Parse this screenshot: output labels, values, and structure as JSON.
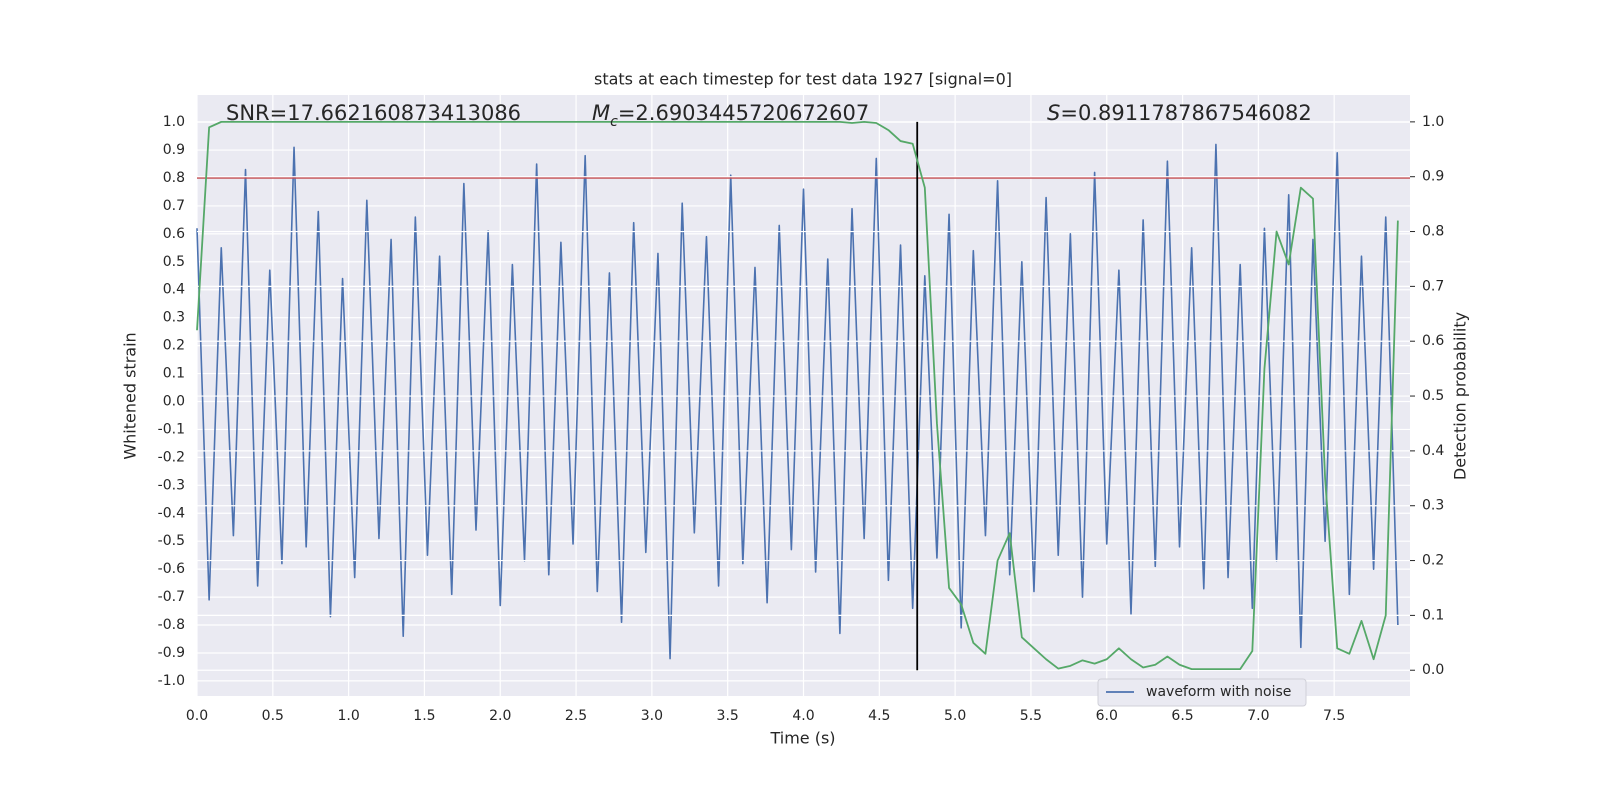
{
  "chart_data": {
    "type": "line",
    "title": "stats at each timestep for test data 1927 [signal=0]",
    "x_label": "Time (s)",
    "y_label": "Whitened strain",
    "y2_label": "Detection probability",
    "annotations": [
      {
        "text": "SNR=17.662160873413086"
      },
      {
        "symbol": "M",
        "subscript": "c",
        "text": "=2.6903445720672607"
      },
      {
        "symbol": "S",
        "text": "=0.8911787867546082"
      }
    ],
    "xlim": [
      0,
      8
    ],
    "ylim": [
      -1.054,
      1.097
    ],
    "y2lim": [
      -0.047,
      1.049
    ],
    "xticks": [
      {
        "value": 0,
        "label": "0.0"
      },
      0.5,
      {
        "value": 1,
        "label": "1.0"
      },
      1.5,
      {
        "value": 2,
        "label": "2.0"
      },
      2.5,
      {
        "value": 3,
        "label": "3.0"
      },
      3.5,
      {
        "value": 4,
        "label": "4.0"
      },
      4.5,
      {
        "value": 5,
        "label": "5.0"
      },
      5.5,
      {
        "value": 6,
        "label": "6.0"
      },
      6.5,
      {
        "value": 7,
        "label": "7.0"
      },
      7.5
    ],
    "yticks": [
      {
        "value": -1,
        "label": "-1.0"
      },
      -0.9,
      -0.8,
      -0.7,
      -0.6,
      -0.5,
      -0.4,
      -0.3,
      -0.2,
      -0.1,
      {
        "value": 0,
        "label": "0.0"
      },
      0.1,
      0.2,
      0.3,
      0.4,
      0.5,
      0.6,
      0.7,
      0.8,
      0.9,
      {
        "value": 1,
        "label": "1.0"
      }
    ],
    "y2ticks": [
      {
        "value": 0,
        "label": "0.0"
      },
      0.1,
      0.2,
      0.3,
      0.4,
      0.5,
      0.6,
      0.7,
      0.8,
      0.9,
      {
        "value": 1,
        "label": "1.0"
      }
    ],
    "grid": true,
    "hline": {
      "y": 0.8,
      "color": "#c44e52"
    },
    "vline": {
      "x": 4.75,
      "ymin": 0,
      "ymax": 1,
      "axis": "y2",
      "color": "#000000"
    },
    "x": [
      0,
      0.08,
      0.16,
      0.24,
      0.32,
      0.4,
      0.48,
      0.56,
      0.64,
      0.72,
      0.8,
      0.88,
      0.96,
      1.04,
      1.12,
      1.2,
      1.28,
      1.36,
      1.44,
      1.52,
      1.6,
      1.68,
      1.76,
      1.84,
      1.92,
      2,
      2.08,
      2.16,
      2.24,
      2.32,
      2.4,
      2.48,
      2.56,
      2.64,
      2.72,
      2.8,
      2.88,
      2.96,
      3.04,
      3.12,
      3.2,
      3.28,
      3.36,
      3.44,
      3.52,
      3.6,
      3.68,
      3.76,
      3.84,
      3.92,
      4,
      4.08,
      4.16,
      4.24,
      4.32,
      4.4,
      4.48,
      4.56,
      4.64,
      4.72,
      4.8,
      4.88,
      4.96,
      5.04,
      5.12,
      5.2,
      5.28,
      5.36,
      5.44,
      5.52,
      5.6,
      5.68,
      5.76,
      5.84,
      5.92,
      6,
      6.08,
      6.16,
      6.24,
      6.32,
      6.4,
      6.48,
      6.56,
      6.64,
      6.72,
      6.8,
      6.88,
      6.96,
      7.04,
      7.12,
      7.2,
      7.28,
      7.36,
      7.44,
      7.52,
      7.6,
      7.68,
      7.76,
      7.84,
      7.92
    ],
    "series": [
      {
        "name": "waveform with noise",
        "color": "#4c72b0",
        "values": [
          0.62,
          -0.71,
          0.55,
          -0.48,
          0.83,
          -0.66,
          0.47,
          -0.58,
          0.91,
          -0.52,
          0.68,
          -0.77,
          0.44,
          -0.63,
          0.72,
          -0.49,
          0.58,
          -0.84,
          0.66,
          -0.55,
          0.52,
          -0.69,
          0.78,
          -0.46,
          0.61,
          -0.73,
          0.49,
          -0.57,
          0.85,
          -0.62,
          0.57,
          -0.51,
          0.88,
          -0.68,
          0.46,
          -0.79,
          0.64,
          -0.54,
          0.53,
          -0.92,
          0.71,
          -0.47,
          0.59,
          -0.66,
          0.81,
          -0.58,
          0.48,
          -0.72,
          0.63,
          -0.53,
          0.76,
          -0.61,
          0.51,
          -0.83,
          0.69,
          -0.49,
          0.87,
          -0.64,
          0.56,
          -0.74,
          0.45,
          -0.56,
          0.67,
          -0.81,
          0.54,
          -0.48,
          0.79,
          -0.62,
          0.5,
          -0.68,
          0.73,
          -0.55,
          0.6,
          -0.7,
          0.82,
          -0.51,
          0.47,
          -0.76,
          0.65,
          -0.59,
          0.86,
          -0.52,
          0.55,
          -0.67,
          0.92,
          -0.63,
          0.49,
          -0.74,
          0.62,
          -0.57,
          0.74,
          -0.88,
          0.58,
          -0.5,
          0.89,
          -0.69,
          0.52,
          -0.6,
          0.66,
          -0.8
        ]
      },
      {
        "name": "detection probability",
        "color": "#55a868",
        "axis": "y2",
        "values": [
          0.62,
          0.99,
          1,
          1,
          1,
          1,
          1,
          1,
          1,
          1,
          1,
          1,
          1,
          1,
          1,
          1,
          1,
          1,
          1,
          1,
          1,
          1,
          1,
          1,
          1,
          1,
          1,
          1,
          1,
          1,
          1,
          1,
          1,
          1,
          1,
          1,
          1,
          1,
          1,
          1,
          1,
          1,
          1,
          1,
          1,
          1,
          1,
          1,
          1,
          1,
          1,
          1,
          1,
          1,
          0.998,
          1,
          0.998,
          0.985,
          0.965,
          0.96,
          0.88,
          0.45,
          0.15,
          0.12,
          0.05,
          0.03,
          0.2,
          0.25,
          0.06,
          0.04,
          0.02,
          0.003,
          0.008,
          0.018,
          0.012,
          0.02,
          0.04,
          0.02,
          0.005,
          0.01,
          0.025,
          0.01,
          0.002,
          0.002,
          0.002,
          0.002,
          0.002,
          0.035,
          0.55,
          0.8,
          0.74,
          0.88,
          0.86,
          0.35,
          0.04,
          0.03,
          0.09,
          0.02,
          0.1,
          0.82
        ]
      }
    ]
  }
}
